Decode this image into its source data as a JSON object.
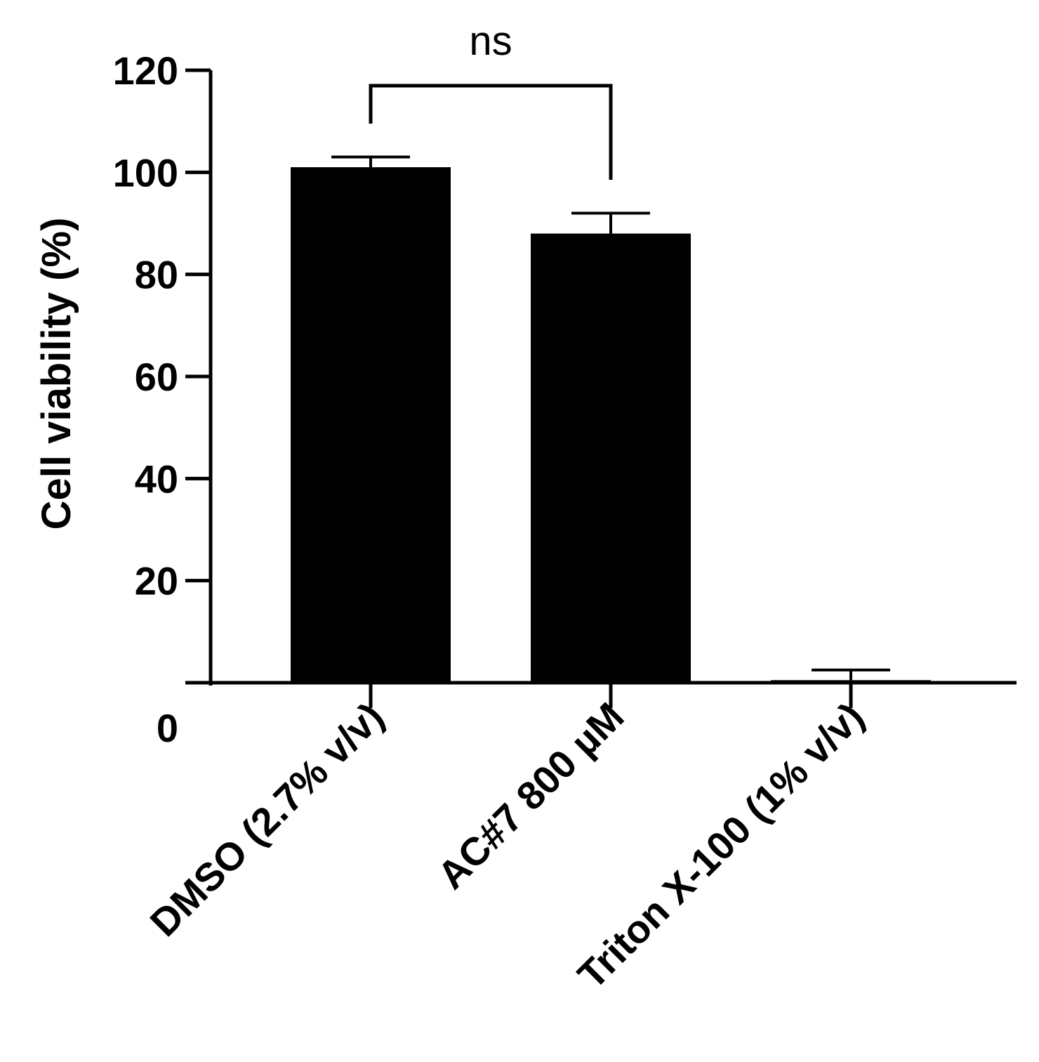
{
  "chart_data": {
    "type": "bar",
    "title": "",
    "xlabel": "",
    "ylabel": "Cell viability (%)",
    "ylim": [
      0,
      120
    ],
    "yticks": [
      0,
      20,
      40,
      60,
      80,
      100,
      120
    ],
    "categories": [
      "DMSO (2.7% v/v)",
      "AC#7 800 µM",
      "Triton X-100 (1% v/v)"
    ],
    "values": [
      101,
      88,
      0.5
    ],
    "error": [
      2,
      4,
      2
    ],
    "bar_color": "#000000",
    "grid": false,
    "legend": "none",
    "annotations": [
      {
        "type": "significance-bracket",
        "from": 0,
        "to": 1,
        "label": "ns"
      }
    ]
  }
}
